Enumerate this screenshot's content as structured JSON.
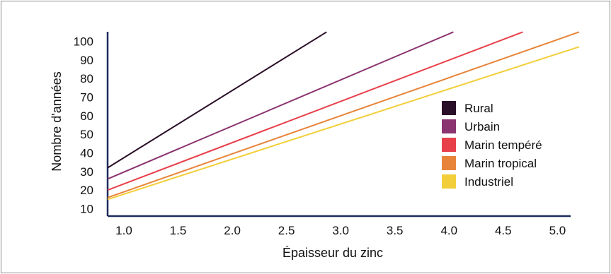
{
  "chart_data": {
    "type": "line",
    "title": "",
    "xlabel": "Épaisseur du zinc",
    "ylabel": "Nombre d'années",
    "xlim": [
      0.85,
      5.2
    ],
    "ylim": [
      3,
      107
    ],
    "x_ticks": [
      "1.0",
      "1.5",
      "2.0",
      "2.5",
      "3.0",
      "3.5",
      "4.0",
      "4.5",
      "5.0"
    ],
    "y_ticks": [
      "10",
      "20",
      "30",
      "40",
      "50",
      "60",
      "70",
      "80",
      "90",
      "100"
    ],
    "grid": false,
    "legend_position": "right",
    "series": [
      {
        "name": "Rural",
        "color": "#2a0f28",
        "x": [
          0.85,
          2.87
        ],
        "y": [
          32,
          105
        ]
      },
      {
        "name": "Urbain",
        "color": "#8a3470",
        "x": [
          0.85,
          4.04
        ],
        "y": [
          26,
          105
        ]
      },
      {
        "name": "Marin tempéré",
        "color": "#e8404a",
        "x": [
          0.85,
          4.68
        ],
        "y": [
          20,
          105
        ]
      },
      {
        "name": "Marin tropical",
        "color": "#e8843a",
        "x": [
          0.85,
          5.2
        ],
        "y": [
          16,
          105
        ]
      },
      {
        "name": "Industriel",
        "color": "#f2cf3a",
        "x": [
          0.85,
          5.2
        ],
        "y": [
          15,
          97
        ]
      }
    ]
  }
}
